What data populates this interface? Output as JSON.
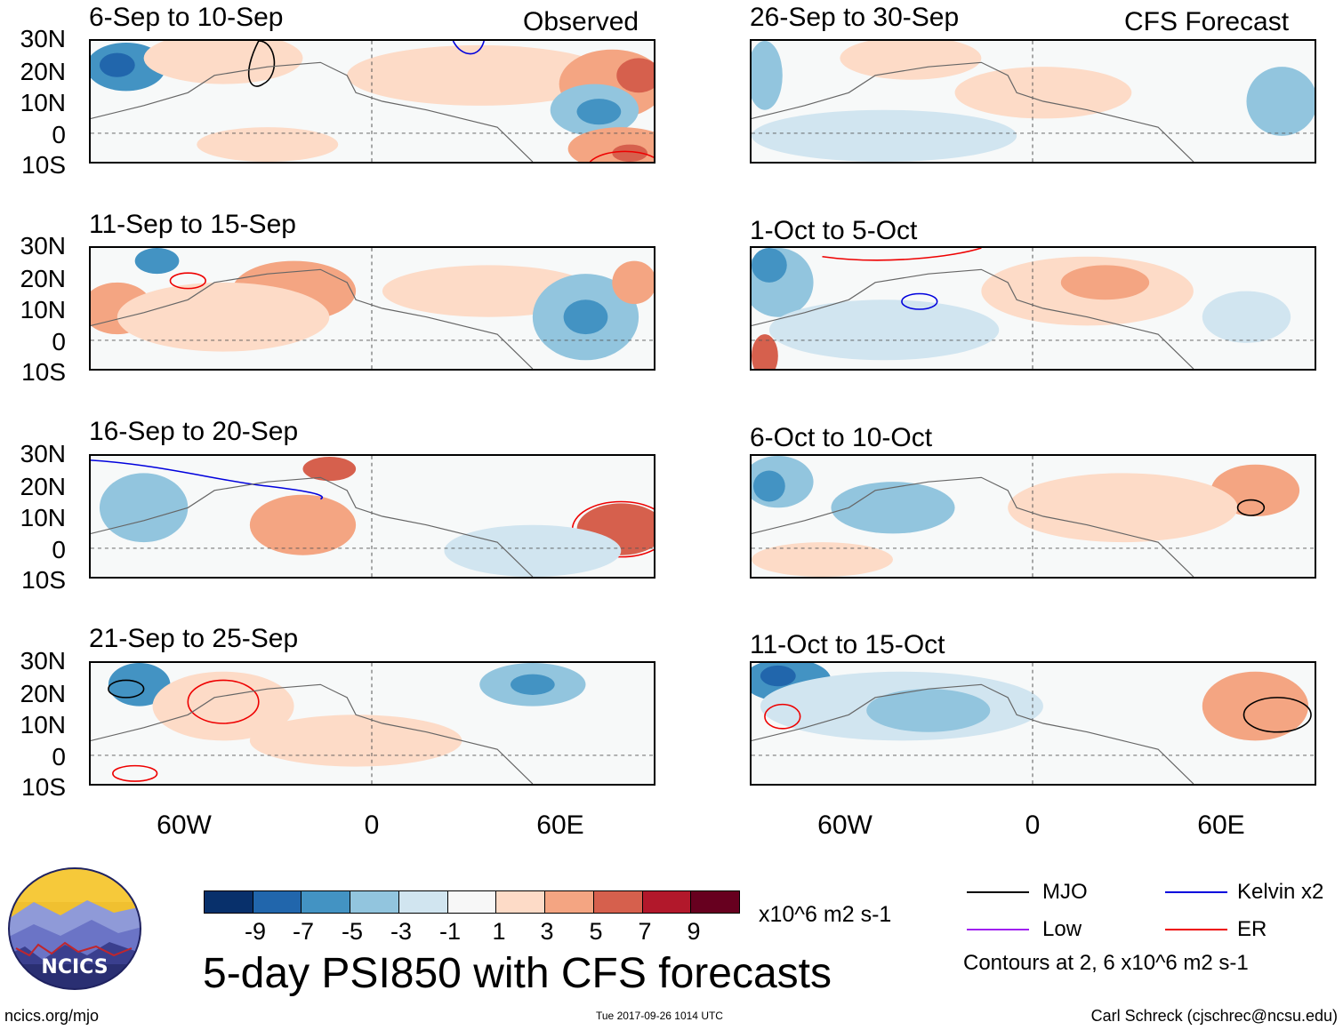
{
  "headers": {
    "observed": "Observed",
    "forecast": "CFS Forecast"
  },
  "panels_left": [
    {
      "title": "6-Sep to 10-Sep"
    },
    {
      "title": "11-Sep to 15-Sep"
    },
    {
      "title": "16-Sep to 20-Sep"
    },
    {
      "title": "21-Sep to 25-Sep"
    }
  ],
  "panels_right": [
    {
      "title": "26-Sep to 30-Sep"
    },
    {
      "title": "1-Oct to 5-Oct"
    },
    {
      "title": "6-Oct to 10-Oct"
    },
    {
      "title": "11-Oct to 15-Oct"
    }
  ],
  "lat_labels": [
    "30N",
    "20N",
    "10N",
    "0",
    "10S"
  ],
  "lon_labels": [
    "60W",
    "0",
    "60E"
  ],
  "colorbar": {
    "ticks": [
      "-9",
      "-7",
      "-5",
      "-3",
      "-1",
      "1",
      "3",
      "5",
      "7",
      "9"
    ],
    "colors": [
      "#08306b",
      "#2166ac",
      "#4393c3",
      "#92c5de",
      "#d1e5f0",
      "#f7f7f7",
      "#fddbc7",
      "#f4a582",
      "#d6604d",
      "#b2182b",
      "#67001f"
    ],
    "units": "x10^6 m2 s-1"
  },
  "legend": {
    "mjo": "MJO",
    "kelvin": "Kelvin x2",
    "low": "Low",
    "er": "ER",
    "colors": {
      "mjo": "#000000",
      "kelvin": "#0000dd",
      "low": "#a020f0",
      "er": "#ee0000"
    },
    "contours": "Contours at 2, 6 x10^6 m2 s-1"
  },
  "main_title": "5-day PSI850 with CFS forecasts",
  "logo_text": "NCICS",
  "footer": {
    "url": "ncics.org/mjo",
    "timestamp": "Tue 2017-09-26 1014 UTC",
    "author": "Carl Schreck (cjschrec@ncsu.edu)"
  }
}
